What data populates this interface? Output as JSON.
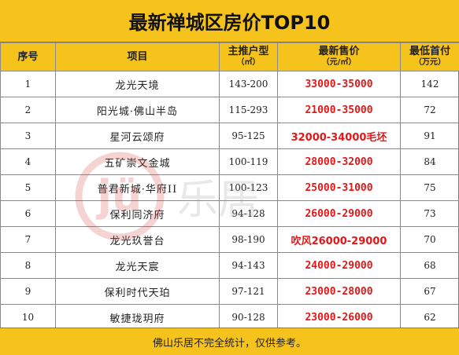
{
  "title": "最新禅城区房价TOP10",
  "headers": {
    "index": "序号",
    "project": "项目",
    "unit_type": "主推户型",
    "unit_type_unit": "（㎡）",
    "price": "最新售价",
    "price_unit": "（元/㎡）",
    "down_payment": "最低首付",
    "down_payment_unit": "（万元）"
  },
  "rows": [
    {
      "index": "1",
      "project": "龙光天境",
      "unit_type": "143-200",
      "price": "33000-35000",
      "down_payment": "142"
    },
    {
      "index": "2",
      "project": "阳光城·佛山半岛",
      "unit_type": "115-293",
      "price": "21000-35000",
      "down_payment": "72"
    },
    {
      "index": "3",
      "project": "星河云颂府",
      "unit_type": "95-125",
      "price": "32000-34000毛坯",
      "down_payment": "91"
    },
    {
      "index": "4",
      "project": "五矿崇文金城",
      "unit_type": "100-119",
      "price": "28000-32000",
      "down_payment": "84"
    },
    {
      "index": "5",
      "project": "普君新城·华府II",
      "unit_type": "100-123",
      "price": "25000-31000",
      "down_payment": "75"
    },
    {
      "index": "6",
      "project": "保利同济府",
      "unit_type": "94-128",
      "price": "26000-29000",
      "down_payment": "73"
    },
    {
      "index": "7",
      "project": "龙光玖誉台",
      "unit_type": "98-190",
      "price": "吹风26000-29000",
      "down_payment": "70"
    },
    {
      "index": "8",
      "project": "龙光天宸",
      "unit_type": "94-143",
      "price": "24000-29000",
      "down_payment": "68"
    },
    {
      "index": "9",
      "project": "保利时代天珀",
      "unit_type": "97-121",
      "price": "23000-28000",
      "down_payment": "67"
    },
    {
      "index": "10",
      "project": "敏捷珑玥府",
      "unit_type": "90-128",
      "price": "23000-26000",
      "down_payment": "62"
    }
  ],
  "footer": "佛山乐居不完全统计，仅供参考。",
  "watermark": {
    "logo_text": "jü",
    "brand_text": "乐居"
  },
  "colors": {
    "accent": "#f6c21c",
    "price": "#e21818"
  }
}
